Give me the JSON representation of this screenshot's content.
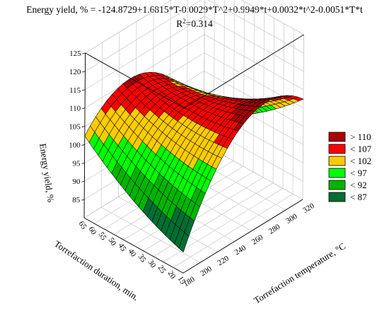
{
  "chart_data": {
    "type": "surface3d",
    "title_line1": "Energy yield, % = -124.8729+1.6815*T-0.0029*T^2+0.9949*t+0.0032*t^2-0.0051*T*t",
    "r2_prefix": "R",
    "r2_sup": "2",
    "r2_value": "=0.314",
    "zlabel": "Energy yield, %",
    "xlabel": "Torrefaction temperature, °C",
    "ylabel": "Torrefaction duration, min.",
    "x_range": [
      180,
      320
    ],
    "y_range": [
      15,
      65
    ],
    "z_range": [
      80,
      125
    ],
    "x_ticks": [
      "180",
      "200",
      "220",
      "240",
      "260",
      "280",
      "300",
      "320"
    ],
    "y_ticks": [
      "15",
      "20",
      "25",
      "30",
      "35",
      "40",
      "45",
      "50",
      "55",
      "60",
      "65"
    ],
    "z_ticks": [
      "85",
      "90",
      "95",
      "100",
      "105",
      "110",
      "115",
      "120",
      "125"
    ],
    "model": {
      "intercept": -124.8729,
      "T": 1.6815,
      "T2": -0.0029,
      "t": 0.9949,
      "t2": 0.0032,
      "Tt": -0.0051
    },
    "legend": [
      {
        "label": "> 110",
        "color": "#aa0000"
      },
      {
        "label": "< 107",
        "color": "#ff0000"
      },
      {
        "label": "< 102",
        "color": "#ffcc00"
      },
      {
        "label": "< 97",
        "color": "#00ff00"
      },
      {
        "label": "< 92",
        "color": "#00b400"
      },
      {
        "label": "< 87",
        "color": "#006e32"
      }
    ]
  }
}
